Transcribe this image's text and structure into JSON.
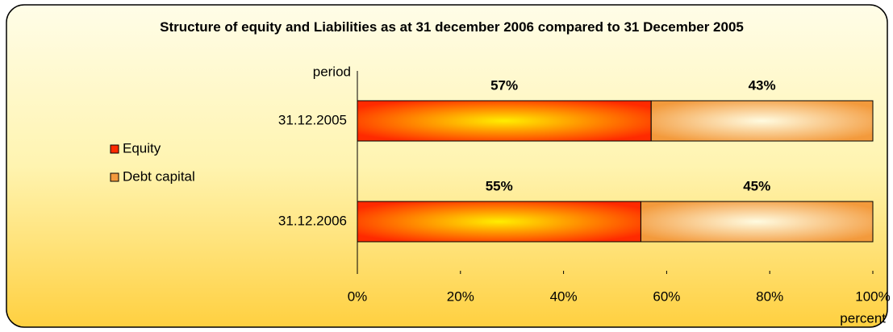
{
  "chart_data": {
    "type": "stacked-bar-horizontal",
    "title": "Structure of equity and Liabilities as at 31 december 2006 compared to 31 December 2005",
    "y_label": "period",
    "x_label": "percent",
    "categories": [
      "31.12.2005",
      "31.12.2006"
    ],
    "series": [
      {
        "name": "Equity",
        "color": "#ff2a00",
        "values": [
          57,
          55
        ],
        "value_labels": [
          "57%",
          "55%"
        ]
      },
      {
        "name": "Debt capital",
        "color": "#f39a3c",
        "values": [
          43,
          45
        ],
        "value_labels": [
          "43%",
          "45%"
        ]
      }
    ],
    "xlim": [
      0,
      100
    ],
    "xticks": [
      {
        "value": 0,
        "label": "0%"
      },
      {
        "value": 20,
        "label": "20%"
      },
      {
        "value": 40,
        "label": "40%"
      },
      {
        "value": 60,
        "label": "60%"
      },
      {
        "value": 80,
        "label": "80%"
      },
      {
        "value": 100,
        "label": "100%"
      }
    ],
    "legend": "left",
    "grid": false
  }
}
